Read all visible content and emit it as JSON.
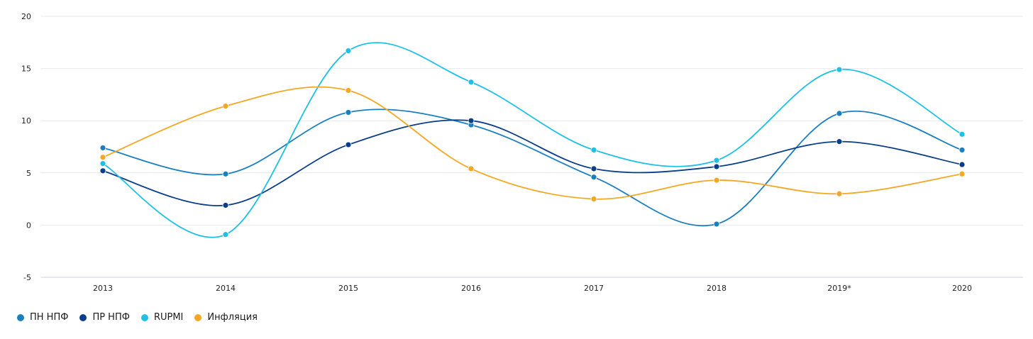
{
  "chart_data": {
    "type": "line",
    "categories": [
      "2013",
      "2014",
      "2015",
      "2016",
      "2017",
      "2018",
      "2019*",
      "2020"
    ],
    "ylim": [
      -5,
      20
    ],
    "yticks": [
      -5,
      0,
      5,
      10,
      15,
      20
    ],
    "grid": true,
    "legend_position": "bottom-left",
    "series": [
      {
        "name": "ПН НПФ",
        "color": "#1a7fc1",
        "values": [
          7.4,
          4.9,
          10.8,
          9.6,
          4.6,
          0.1,
          10.7,
          7.2
        ]
      },
      {
        "name": "ПР НПФ",
        "color": "#0a3d8a",
        "values": [
          5.2,
          1.9,
          7.7,
          10.0,
          5.4,
          5.6,
          8.0,
          5.8
        ]
      },
      {
        "name": "RUPMI",
        "color": "#1ec0e6",
        "values": [
          5.9,
          -0.9,
          16.7,
          13.7,
          7.2,
          6.2,
          14.9,
          8.7
        ]
      },
      {
        "name": "Инфляция",
        "color": "#f5a623",
        "values": [
          6.5,
          11.4,
          12.9,
          5.4,
          2.5,
          4.3,
          3.0,
          4.9
        ]
      }
    ]
  }
}
